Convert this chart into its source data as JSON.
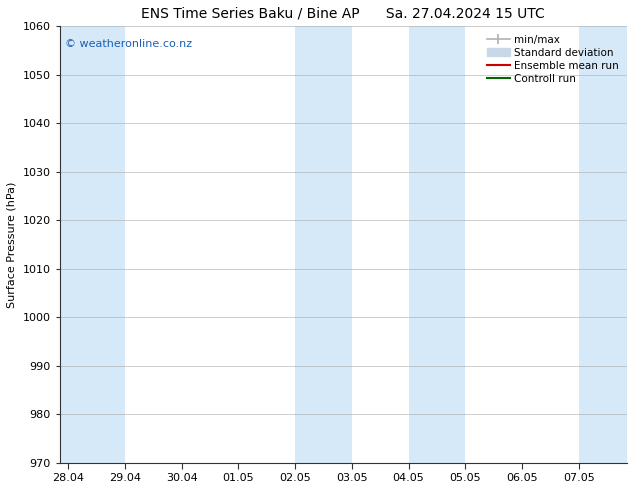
{
  "title_left": "ENS Time Series Baku / Bine AP",
  "title_right": "Sa. 27.04.2024 15 UTC",
  "ylabel": "Surface Pressure (hPa)",
  "ylim": [
    970,
    1060
  ],
  "yticks": [
    970,
    980,
    990,
    1000,
    1010,
    1020,
    1030,
    1040,
    1050,
    1060
  ],
  "xtick_labels": [
    "28.04",
    "29.04",
    "30.04",
    "01.05",
    "02.05",
    "03.05",
    "04.05",
    "05.05",
    "06.05",
    "07.05"
  ],
  "xtick_positions": [
    0,
    1,
    2,
    3,
    4,
    5,
    6,
    7,
    8,
    9
  ],
  "x_min": -0.15,
  "x_max": 9.85,
  "shaded_bands": [
    {
      "start": -0.15,
      "end": 1.0
    },
    {
      "start": 4.0,
      "end": 5.0
    },
    {
      "start": 6.0,
      "end": 7.0
    },
    {
      "start": 9.0,
      "end": 9.85
    }
  ],
  "shaded_color": "#d6e9f8",
  "watermark_text": "© weatheronline.co.nz",
  "watermark_color": "#1a5fb4",
  "legend_entries": [
    {
      "label": "min/max",
      "color": "#b0b0b0",
      "type": "minmax"
    },
    {
      "label": "Standard deviation",
      "color": "#c8d8e8",
      "type": "patch"
    },
    {
      "label": "Ensemble mean run",
      "color": "#cc0000",
      "type": "line"
    },
    {
      "label": "Controll run",
      "color": "#006600",
      "type": "line"
    }
  ],
  "background_color": "#ffffff",
  "plot_bg_color": "#ffffff",
  "grid_color": "#aaaaaa",
  "title_fontsize": 10,
  "axis_label_fontsize": 8,
  "tick_fontsize": 8,
  "watermark_fontsize": 8,
  "legend_fontsize": 7.5
}
